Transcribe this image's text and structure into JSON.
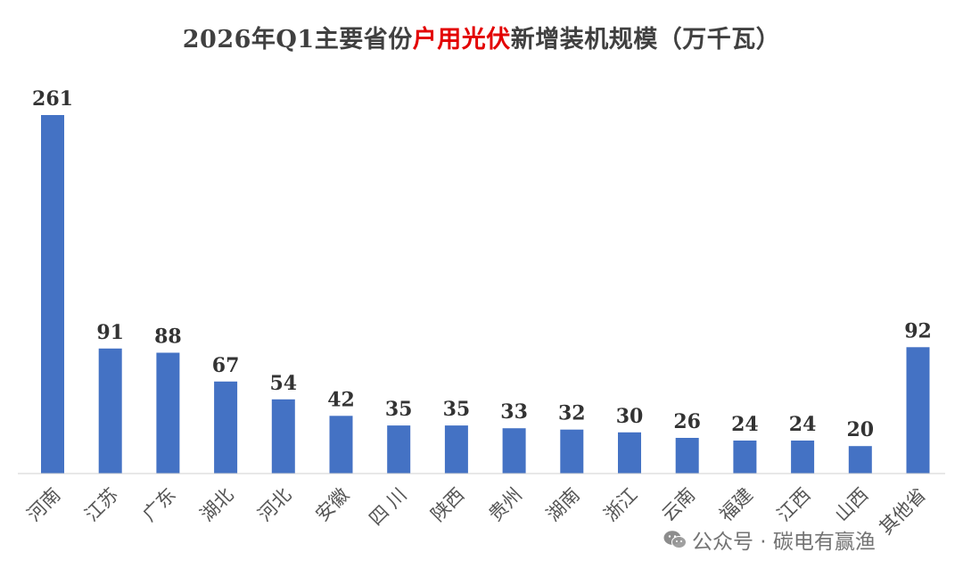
{
  "title": {
    "prefix": "2026年Q1主要省份",
    "highlight": "户用光伏",
    "suffix": "新增装机规模（万千瓦）"
  },
  "colors": {
    "bar": "#4472c4",
    "highlight": "#e30000",
    "axis": "#d0d0d0"
  },
  "chart_data": {
    "type": "bar",
    "categories": [
      "河南",
      "江苏",
      "广东",
      "湖北",
      "河北",
      "安徽",
      "四 川",
      "陕西",
      "贵州",
      "湖南",
      "浙江",
      "云南",
      "福建",
      "江西",
      "山西",
      "其他省"
    ],
    "values": [
      261,
      91,
      88,
      67,
      54,
      42,
      35,
      35,
      33,
      32,
      30,
      26,
      24,
      24,
      20,
      92
    ],
    "ylim": [
      0,
      261
    ],
    "grid": false,
    "legend": "none"
  },
  "watermark": {
    "icon": "wechat-icon",
    "text": "公众号 · 碳电有赢渔"
  }
}
